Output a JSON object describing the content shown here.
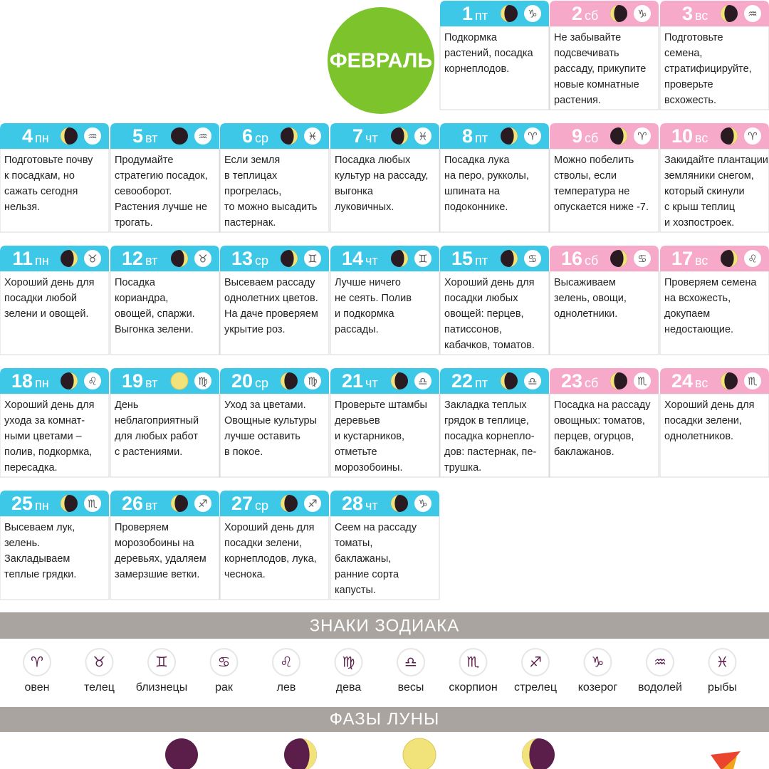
{
  "title": "ФЕВРАЛЬ",
  "days": [
    {
      "day": 1,
      "weekday": "пт",
      "moon": "waning",
      "zodiac": "♑",
      "lines": [
        "Подкормка",
        "растений, посадка",
        "корнеплодов."
      ]
    },
    {
      "day": 2,
      "weekday": "сб",
      "moon": "waning",
      "zodiac": "♑",
      "lines": [
        "Не забывайте",
        "подсвечивать",
        "рассаду, прикупите",
        "новые комнатные",
        "растения."
      ]
    },
    {
      "day": 3,
      "weekday": "вс",
      "moon": "waning",
      "zodiac": "♒",
      "lines": [
        "Подготовьте",
        "семена,",
        "стратифицируйте,",
        "проверьте",
        "всхожесть."
      ]
    },
    {
      "day": 4,
      "weekday": "пн",
      "moon": "waning",
      "zodiac": "♒",
      "lines": [
        "Подготовьте почву",
        "к посадкам, но",
        "сажать сегодня",
        "нельзя."
      ]
    },
    {
      "day": 5,
      "weekday": "вт",
      "moon": "new",
      "zodiac": "♒",
      "lines": [
        "Продумайте",
        "стратегию посадок,",
        "севооборот.",
        "Растения лучше не",
        "трогать."
      ]
    },
    {
      "day": 6,
      "weekday": "ср",
      "moon": "waxing",
      "zodiac": "♓",
      "lines": [
        "Если земля",
        "в теплицах",
        "прогрелась,",
        "то можно высадить",
        "пастернак."
      ]
    },
    {
      "day": 7,
      "weekday": "чт",
      "moon": "waxing",
      "zodiac": "♓",
      "lines": [
        "Посадка любых",
        "культур на рассаду,",
        "выгонка",
        "луковичных."
      ]
    },
    {
      "day": 8,
      "weekday": "пт",
      "moon": "waxing",
      "zodiac": "♈",
      "lines": [
        "Посадка лука",
        "на перо, рукколы,",
        "шпината на",
        "подоконнике."
      ]
    },
    {
      "day": 9,
      "weekday": "сб",
      "moon": "waxing",
      "zodiac": "♈",
      "lines": [
        "Можно побелить",
        "стволы, если",
        "температура не",
        "опускается ниже -7."
      ]
    },
    {
      "day": 10,
      "weekday": "вс",
      "moon": "waxing",
      "zodiac": "♈",
      "lines": [
        "Закидайте плантации",
        "земляники снегом,",
        "который скинули",
        "с крыш теплиц",
        "и хозпостроек."
      ]
    },
    {
      "day": 11,
      "weekday": "пн",
      "moon": "waxing",
      "zodiac": "♉",
      "lines": [
        "Хороший день для",
        "посадки любой",
        "зелени и овощей."
      ]
    },
    {
      "day": 12,
      "weekday": "вт",
      "moon": "waxing",
      "zodiac": "♉",
      "lines": [
        "Посадка",
        "кориандра,",
        "овощей, спаржи.",
        "Выгонка зелени."
      ]
    },
    {
      "day": 13,
      "weekday": "ср",
      "moon": "waxing",
      "zodiac": "♊",
      "lines": [
        "Высеваем рассаду",
        "однолетних цветов.",
        "На даче проверяем",
        "укрытие роз."
      ]
    },
    {
      "day": 14,
      "weekday": "чт",
      "moon": "waxing",
      "zodiac": "♊",
      "lines": [
        "Лучше ничего",
        "не сеять. Полив",
        "и подкормка",
        "рассады."
      ]
    },
    {
      "day": 15,
      "weekday": "пт",
      "moon": "waxing",
      "zodiac": "♋",
      "lines": [
        "Хороший день для",
        "посадки любых",
        "овощей: перцев,",
        "патиссонов,",
        "кабачков, томатов."
      ]
    },
    {
      "day": 16,
      "weekday": "сб",
      "moon": "waxing",
      "zodiac": "♋",
      "lines": [
        "Высаживаем",
        "зелень, овощи,",
        "однолетники."
      ]
    },
    {
      "day": 17,
      "weekday": "вс",
      "moon": "waxing",
      "zodiac": "♌",
      "lines": [
        "Проверяем семена",
        "на всхожесть,",
        "докупаем",
        "недостающие."
      ]
    },
    {
      "day": 18,
      "weekday": "пн",
      "moon": "waxing",
      "zodiac": "♌",
      "lines": [
        "Хороший день для",
        "ухода за комнат-",
        "ными цветами –",
        "полив, подкормка,",
        "пересадка."
      ]
    },
    {
      "day": 19,
      "weekday": "вт",
      "moon": "full",
      "zodiac": "♍",
      "lines": [
        "День",
        "неблагоприятный",
        "для любых работ",
        "с растениями."
      ]
    },
    {
      "day": 20,
      "weekday": "ср",
      "moon": "waning",
      "zodiac": "♍",
      "lines": [
        "Уход за цветами.",
        "Овощные культуры",
        "лучше оставить",
        "в покое."
      ]
    },
    {
      "day": 21,
      "weekday": "чт",
      "moon": "waning",
      "zodiac": "♎",
      "lines": [
        "Проверьте штамбы",
        "деревьев",
        "и кустарников,",
        "отметьте",
        "морозобоины."
      ]
    },
    {
      "day": 22,
      "weekday": "пт",
      "moon": "waning",
      "zodiac": "♎",
      "lines": [
        "Закладка теплых",
        "грядок в теплице,",
        "посадка корнепло-",
        "дов: пастернак, пе-",
        "трушка."
      ]
    },
    {
      "day": 23,
      "weekday": "сб",
      "moon": "waning",
      "zodiac": "♏",
      "lines": [
        "Посадка на рассаду",
        "овощных: томатов,",
        "перцев, огурцов,",
        "баклажанов."
      ]
    },
    {
      "day": 24,
      "weekday": "вс",
      "moon": "waning",
      "zodiac": "♏",
      "lines": [
        "Хороший день для",
        "посадки зелени,",
        "однолетников."
      ]
    },
    {
      "day": 25,
      "weekday": "пн",
      "moon": "waning",
      "zodiac": "♏",
      "lines": [
        "Высеваем лук,",
        "зелень.",
        "Закладываем",
        "теплые грядки."
      ]
    },
    {
      "day": 26,
      "weekday": "вт",
      "moon": "waning",
      "zodiac": "♐",
      "lines": [
        "Проверяем",
        "морозобоины на",
        "деревьях, удаляем",
        "замерзшие ветки."
      ]
    },
    {
      "day": 27,
      "weekday": "ср",
      "moon": "waning",
      "zodiac": "♐",
      "lines": [
        "Хороший день для",
        "посадки зелени,",
        "корнеплодов, лука,",
        "чеснока."
      ]
    },
    {
      "day": 28,
      "weekday": "чт",
      "moon": "waning",
      "zodiac": "♑",
      "lines": [
        "Сеем на рассаду",
        "томаты,",
        "баклажаны,",
        "ранние сорта",
        "капусты."
      ]
    }
  ],
  "zodiac_legend": {
    "title": "ЗНАКИ ЗОДИАКА",
    "signs": [
      {
        "symbol": "♈",
        "name": "овен"
      },
      {
        "symbol": "♉",
        "name": "телец"
      },
      {
        "symbol": "♊",
        "name": "близнецы"
      },
      {
        "symbol": "♋",
        "name": "рак"
      },
      {
        "symbol": "♌",
        "name": "лев"
      },
      {
        "symbol": "♍",
        "name": "дева"
      },
      {
        "symbol": "♎",
        "name": "весы"
      },
      {
        "symbol": "♏",
        "name": "скорпион"
      },
      {
        "symbol": "♐",
        "name": "стрелец"
      },
      {
        "symbol": "♑",
        "name": "козерог"
      },
      {
        "symbol": "♒",
        "name": "водолей"
      },
      {
        "symbol": "♓",
        "name": "рыбы"
      }
    ]
  },
  "moon_legend": {
    "title": "ФАЗЫ ЛУНЫ",
    "phases": [
      "new",
      "waxing",
      "full",
      "waning"
    ]
  }
}
